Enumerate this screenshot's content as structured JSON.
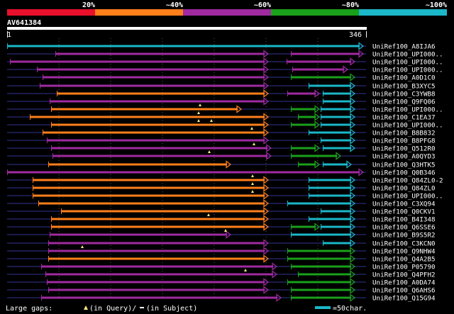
{
  "legend_scale": {
    "labels": [
      "20%",
      "~40%",
      "~60%",
      "~80%",
      "~100%"
    ],
    "colors": [
      "#e8102c",
      "#ff7f1a",
      "#a02aa0",
      "#1aa01a",
      "#1ab8c8"
    ]
  },
  "query": {
    "id": "AV641384",
    "start": "1",
    "end": "346"
  },
  "hits": [
    "UniRef100_A8IJA6",
    "UniRef100_UPI000..",
    "UniRef100_UPI000..",
    "UniRef100_UPI000..",
    "UniRef100_A0D1C0",
    "UniRef100_B3XYC5",
    "UniRef100_C3YWB8",
    "UniRef100_Q9FQ06",
    "UniRef100_UPI000..",
    "UniRef100_C1EA37",
    "UniRef100_UPI000..",
    "UniRef100_B8B832",
    "UniRef100_B8PFG8",
    "UniRef100_Q512R0",
    "UniRef100_A0QYD3",
    "UniRef100_Q3HTK5",
    "UniRef100_Q0B346",
    "UniRef100_Q84ZL0-2",
    "UniRef100_Q84ZL0",
    "UniRef100_UPI000..",
    "UniRef100_C3XQ94",
    "UniRef100_Q0CKV1",
    "UniRef100_B4I348",
    "UniRef100_Q6SSE6",
    "UniRef100_B9S5R2",
    "UniRef100_C3KCN0",
    "UniRef100_Q9NHW4",
    "UniRef100_Q4A2B5",
    "UniRef100_P05790",
    "UniRef100_Q4PFH2",
    "UniRef100_A0DA74",
    "UniRef100_Q6AHS6",
    "UniRef100_Q15G94"
  ],
  "footer": {
    "gaps_text": "Large gaps: ",
    "query_gap_text": "(in Query)/",
    "subject_gap_text": "(in Subject)",
    "scale_text": "=50char."
  }
}
